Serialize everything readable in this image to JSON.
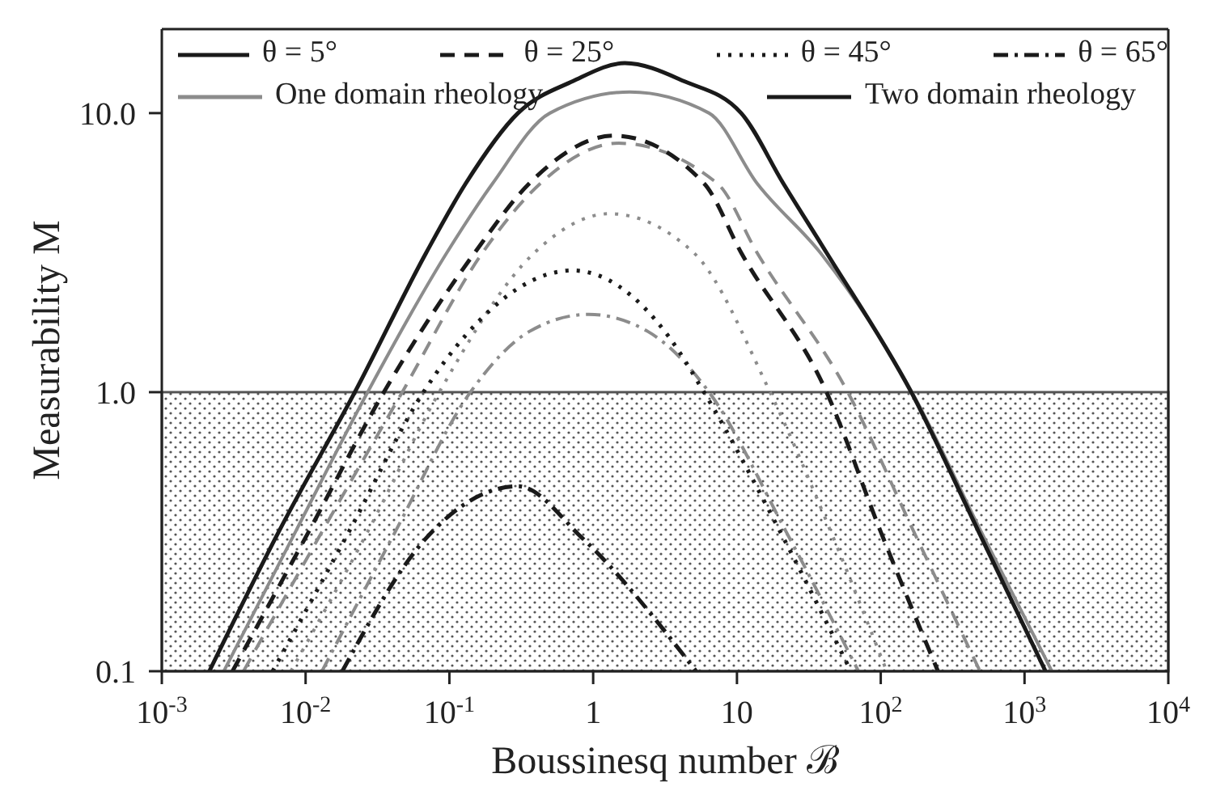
{
  "chart_data": {
    "type": "line",
    "xlabel": "Boussinesq number ℬ",
    "ylabel": "Measurability M",
    "log": "xy",
    "xlim": [
      0.001,
      10000
    ],
    "ylim": [
      0.1,
      20
    ],
    "xticks": [
      {
        "value": 0.001,
        "label": "10$^{-3}$"
      },
      {
        "value": 0.01,
        "label": "10$^{-2}$"
      },
      {
        "value": 0.1,
        "label": "10$^{-1}$"
      },
      1,
      10,
      {
        "value": 100,
        "label": "10$^{2}$"
      },
      {
        "value": 1000,
        "label": "10$^{3}$"
      },
      {
        "value": 10000,
        "label": "10$^{4}$"
      }
    ],
    "yticks": [
      {
        "value": 0.1,
        "label": "0.1"
      },
      {
        "value": 1,
        "label": "1.0"
      },
      {
        "value": 10,
        "label": "10.0"
      }
    ],
    "legend": "top",
    "marker": "none",
    "bands": [
      {
        "axis": "y",
        "from": 0.1,
        "to": 1,
        "color": "#555555"
      }
    ],
    "annotations": [
      "One domain rheology",
      "Two domain rheology"
    ],
    "series": [
      {
        "color": "#8c8c8c",
        "line_style": "solid",
        "x": [
          0.0027,
          0.0085,
          0.027,
          0.096,
          0.2,
          0.5,
          1.8,
          6.4,
          13.8,
          38,
          165,
          500,
          1550
        ],
        "values": [
          0.1,
          0.316,
          1,
          3.16,
          5.6,
          10,
          11.9,
          10,
          5.6,
          3.16,
          1,
          0.316,
          0.1
        ]
      },
      {
        "color": "#8c8c8c",
        "line_style": "dashed",
        "x": [
          0.0037,
          0.013,
          0.047,
          0.17,
          0.43,
          1.5,
          7.3,
          13.8,
          59,
          170,
          490
        ],
        "values": [
          0.1,
          0.316,
          1,
          3.16,
          5.6,
          7.8,
          5.6,
          3.16,
          1,
          0.316,
          0.1
        ]
      },
      {
        "color": "#8c8c8c",
        "line_style": "dotted",
        "x": [
          0.0079,
          0.027,
          0.085,
          0.39,
          1.3,
          5,
          17,
          45,
          110
        ],
        "values": [
          0.1,
          0.316,
          1,
          3.16,
          4.36,
          3.16,
          1,
          0.316,
          0.1
        ]
      },
      {
        "color": "#8c8c8c",
        "line_style": "dashdot",
        "x": [
          0.013,
          0.042,
          0.14,
          0.36,
          0.93,
          2.4,
          6.4,
          22,
          70
        ],
        "values": [
          0.1,
          0.316,
          1,
          1.65,
          1.9,
          1.65,
          1,
          0.316,
          0.1
        ]
      },
      {
        "name": "θ = 5°",
        "color": "#1a1a1a",
        "line_style": "solid",
        "x": [
          0.00214,
          0.0065,
          0.022,
          0.069,
          0.13,
          0.3,
          0.72,
          1.66,
          4.3,
          10.7,
          21,
          42,
          163,
          480,
          1400
        ],
        "values": [
          0.1,
          0.316,
          1,
          3.16,
          5.6,
          10,
          13,
          15.1,
          13,
          10,
          5.6,
          3.16,
          1,
          0.316,
          0.1
        ]
      },
      {
        "name": "θ = 25°",
        "color": "#1a1a1a",
        "line_style": "dashed",
        "x": [
          0.0031,
          0.0105,
          0.035,
          0.15,
          0.36,
          1.4,
          5.9,
          10.7,
          42,
          100,
          250
        ],
        "values": [
          0.1,
          0.316,
          1,
          3.16,
          5.6,
          8.3,
          5.6,
          3.16,
          1,
          0.316,
          0.1
        ]
      },
      {
        "name": "θ = 45°",
        "color": "#1a1a1a",
        "line_style": "dotted",
        "x": [
          0.0059,
          0.02,
          0.066,
          0.13,
          0.72,
          3.3,
          5.9,
          20,
          62
        ],
        "values": [
          0.1,
          0.316,
          1,
          1.6,
          2.73,
          1.6,
          1,
          0.316,
          0.1
        ]
      },
      {
        "name": "θ = 65°",
        "color": "#1a1a1a",
        "line_style": "dashdot",
        "x": [
          0.018,
          0.069,
          0.3,
          0.84,
          5.2
        ],
        "values": [
          0.1,
          0.3,
          0.46,
          0.3,
          0.1
        ]
      }
    ]
  }
}
